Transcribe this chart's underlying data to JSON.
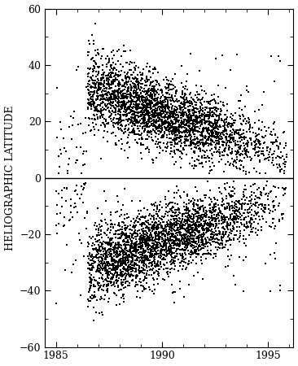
{
  "title": "",
  "xlabel": "",
  "ylabel": "HELIOGRAPHIC LATITUDE",
  "xlim": [
    1984.5,
    1996.2
  ],
  "ylim": [
    -60,
    60
  ],
  "xticks": [
    1985,
    1990,
    1995
  ],
  "yticks": [
    -60,
    -40,
    -20,
    0,
    20,
    40,
    60
  ],
  "background_color": "#ffffff",
  "marker_color": "#000000",
  "marker_size": 1.5,
  "seed": 42,
  "t_cycle_start": 1986.5,
  "t_cycle_max": 1989.5,
  "t_cycle_end": 1996.0,
  "t_data_start": 1985.0,
  "t_data_end": 1995.9,
  "n_points": 3000
}
